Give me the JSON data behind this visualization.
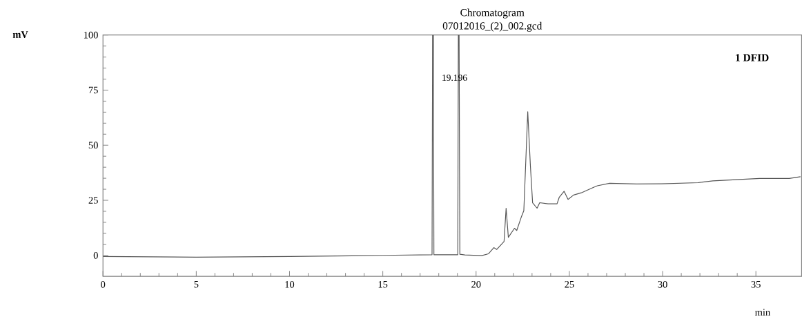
{
  "chart_data": {
    "type": "line",
    "title": "Chromatogram",
    "subtitle": "07012016_(2)_002.gcd",
    "xlabel": "min",
    "xlim": [
      0,
      37.45
    ],
    "ylim": [
      -9.5,
      100
    ],
    "xticks": [
      0,
      5,
      10,
      15,
      20,
      25,
      30,
      35
    ],
    "yticks": [
      0,
      25,
      50,
      75,
      100
    ],
    "grid": false,
    "legend": false,
    "marker": "none",
    "line_style": "solid",
    "annotations": [
      "mV",
      "1 DFID",
      "19.196"
    ],
    "series": [
      {
        "color": "#555555",
        "x": [
          0,
          5,
          10,
          15,
          17.64,
          17.67,
          17.71,
          17.74,
          19.02,
          19.05,
          19.09,
          19.13,
          19.4,
          20.3,
          20.66,
          20.95,
          21.11,
          21.5,
          21.61,
          21.73,
          22.06,
          22.18,
          22.42,
          22.56,
          22.77,
          22.91,
          23.03,
          23.27,
          23.41,
          23.86,
          24.34,
          24.46,
          24.72,
          24.93,
          25.23,
          25.64,
          26.3,
          26.5,
          27.16,
          28.61,
          29.95,
          31.9,
          32.7,
          35.2,
          36.79,
          37.39
        ],
        "values": [
          -0.5,
          -0.8,
          -0.5,
          0,
          0.3,
          100,
          100,
          0.3,
          0.3,
          100,
          100,
          0.5,
          0.2,
          -0.1,
          0.7,
          3.5,
          2.7,
          6.3,
          21.4,
          8.2,
          12.3,
          11.3,
          17.3,
          20.3,
          65.2,
          41.0,
          23.9,
          21.4,
          23.9,
          23.4,
          23.4,
          26.4,
          29.1,
          25.4,
          27.4,
          28.4,
          30.9,
          31.6,
          32.7,
          32.4,
          32.5,
          33.0,
          33.8,
          34.9,
          34.9,
          35.7
        ]
      }
    ]
  }
}
